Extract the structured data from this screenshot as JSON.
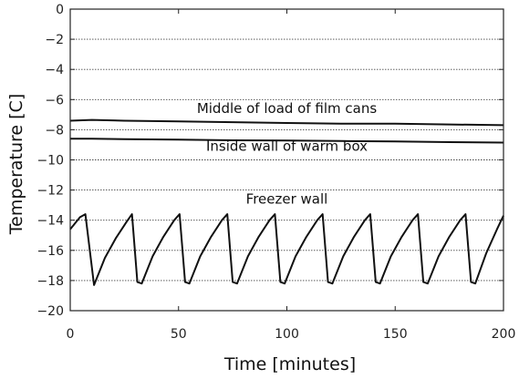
{
  "chart_data": {
    "type": "line",
    "xlabel": "Time [minutes]",
    "ylabel": "Temperature [C]",
    "xlim": [
      0,
      200
    ],
    "ylim": [
      -20,
      0
    ],
    "xticks": [
      0,
      50,
      100,
      150,
      200
    ],
    "yticks": [
      0,
      -2,
      -4,
      -6,
      -8,
      -10,
      -12,
      -14,
      -16,
      -18,
      -20
    ],
    "xtick_labels": [
      "0",
      "50",
      "100",
      "150",
      "200"
    ],
    "ytick_labels": [
      "0",
      "−2",
      "−4",
      "−6",
      "−8",
      "−10",
      "−12",
      "−14",
      "−16",
      "−18",
      "−20"
    ],
    "grid": "horizontal dotted",
    "series": [
      {
        "name": "Middle of load of film cans",
        "x": [
          0,
          10,
          25,
          50,
          75,
          100,
          125,
          150,
          175,
          200
        ],
        "y": [
          -7.4,
          -7.35,
          -7.4,
          -7.45,
          -7.5,
          -7.55,
          -7.6,
          -7.6,
          -7.65,
          -7.7
        ]
      },
      {
        "name": "Inside wall of warm box",
        "x": [
          0,
          10,
          25,
          50,
          75,
          100,
          125,
          150,
          175,
          200
        ],
        "y": [
          -8.6,
          -8.6,
          -8.62,
          -8.65,
          -8.7,
          -8.72,
          -8.75,
          -8.78,
          -8.82,
          -8.85
        ]
      },
      {
        "name": "Freezer wall",
        "x": [
          0,
          4.5,
          7,
          11,
          16,
          21,
          26,
          28.5,
          31,
          33,
          38,
          43,
          48,
          50.5,
          53,
          55,
          60,
          65,
          70,
          72.5,
          75,
          77,
          82,
          87,
          92,
          94.5,
          97,
          99,
          104,
          109,
          114,
          116.5,
          119,
          121,
          126,
          131,
          136,
          138.5,
          141,
          143,
          148,
          153,
          158,
          160.5,
          163,
          165,
          170,
          175,
          180,
          182.5,
          185,
          187,
          192,
          197,
          200
        ],
        "y": [
          -14.6,
          -13.8,
          -13.6,
          -18.3,
          -16.5,
          -15.2,
          -14.1,
          -13.6,
          -18.1,
          -18.2,
          -16.4,
          -15.1,
          -14.0,
          -13.6,
          -18.1,
          -18.2,
          -16.4,
          -15.1,
          -14.0,
          -13.6,
          -18.1,
          -18.2,
          -16.4,
          -15.1,
          -14.0,
          -13.6,
          -18.1,
          -18.2,
          -16.4,
          -15.1,
          -14.0,
          -13.6,
          -18.1,
          -18.2,
          -16.4,
          -15.1,
          -14.0,
          -13.6,
          -18.1,
          -18.2,
          -16.4,
          -15.1,
          -14.0,
          -13.6,
          -18.1,
          -18.2,
          -16.4,
          -15.1,
          -14.0,
          -13.6,
          -18.1,
          -18.2,
          -16.2,
          -14.6,
          -13.7
        ]
      }
    ],
    "annotations": [
      {
        "text": "Middle of load of film cans",
        "x": 100,
        "y": -6.9
      },
      {
        "text": "Inside wall of warm box",
        "x": 100,
        "y": -9.4
      },
      {
        "text": "Freezer wall",
        "x": 100,
        "y": -12.9
      }
    ]
  }
}
